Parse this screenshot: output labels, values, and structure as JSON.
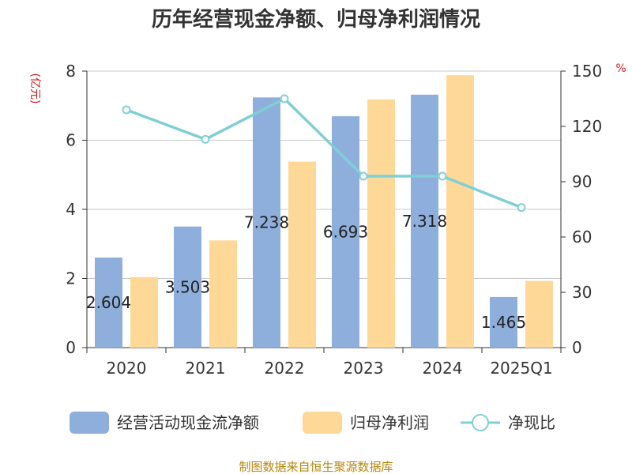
{
  "chart_data": {
    "type": "bar",
    "title": "历年经营现金净额、归母净利润情况",
    "left_unit": "(亿元)",
    "right_unit": "%",
    "categories": [
      "2020",
      "2021",
      "2022",
      "2023",
      "2024",
      "2025Q1"
    ],
    "y_left": {
      "min": 0,
      "max": 8,
      "ticks": [
        "0",
        "2",
        "4",
        "6",
        "8"
      ]
    },
    "y_right": {
      "min": 0,
      "max": 150,
      "ticks": [
        "0",
        "30",
        "60",
        "90",
        "120",
        "150"
      ]
    },
    "grid": true,
    "legend_position": "bottom",
    "series": [
      {
        "name": "经营活动现金流净额",
        "type": "bar",
        "axis": "left",
        "color": "#8eaedb",
        "values": [
          2.604,
          3.503,
          7.238,
          6.693,
          7.318,
          1.465
        ],
        "labels": [
          "2.604",
          "3.503",
          "7.238",
          "6.693",
          "7.318",
          "1.465"
        ]
      },
      {
        "name": "归母净利润",
        "type": "bar",
        "axis": "left",
        "color": "#fed897",
        "values": [
          2.04,
          3.1,
          5.38,
          7.18,
          7.88,
          1.93
        ]
      },
      {
        "name": "净现比",
        "type": "line",
        "axis": "right",
        "color": "#7fcfd6",
        "values": [
          129,
          113,
          135,
          93,
          93,
          76
        ]
      }
    ]
  },
  "source": "制图数据来自恒生聚源数据库"
}
